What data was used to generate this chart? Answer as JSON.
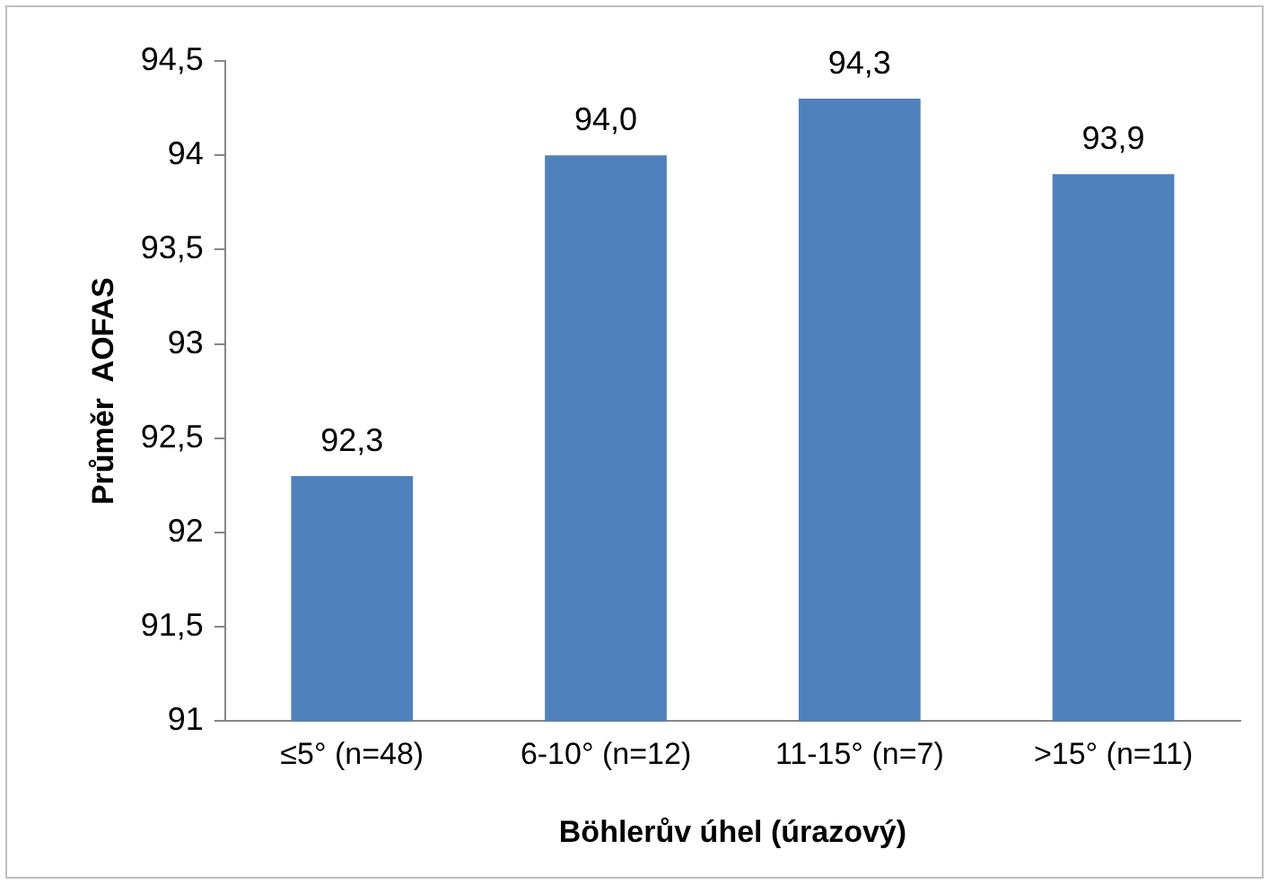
{
  "chart_data": {
    "type": "bar",
    "xlabel": "Böhlerův úhel (úrazový)",
    "ylabel": "Průměr  AOFAS",
    "categories": [
      "≤5° (n=48)",
      "6-10° (n=12)",
      "11-15° (n=7)",
      ">15° (n=11)"
    ],
    "values": [
      92.3,
      94.0,
      94.3,
      93.9
    ],
    "value_labels": [
      "92,3",
      "94,0",
      "94,3",
      "93,9"
    ],
    "color": "#4f81bd",
    "ylim": [
      91,
      94.5
    ],
    "yticks": [
      {
        "value": 91,
        "label": "91"
      },
      {
        "value": 91.5,
        "label": "91,5"
      },
      {
        "value": 92,
        "label": "92"
      },
      {
        "value": 92.5,
        "label": "92,5"
      },
      {
        "value": 93,
        "label": "93"
      },
      {
        "value": 93.5,
        "label": "93,5"
      },
      {
        "value": 94,
        "label": "94"
      },
      {
        "value": 94.5,
        "label": "94,5"
      }
    ],
    "grid": false,
    "legend": false
  }
}
